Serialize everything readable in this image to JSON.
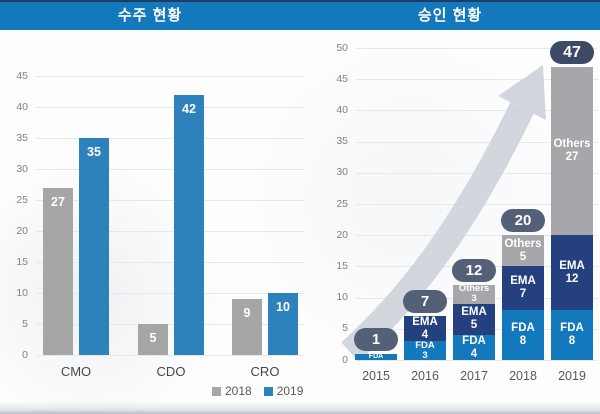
{
  "page": {
    "background": "#fdfdfe",
    "watermark_color": "#d3d8df"
  },
  "header": {
    "left_title": "수주 현황",
    "right_title": "승인 현황",
    "band_color": "#1478bd",
    "top_line_color": "#1e3c64",
    "text_color": "#ffffff"
  },
  "legend": {
    "items": [
      {
        "label": "2018",
        "color": "#a6a6a6"
      },
      {
        "label": "2019",
        "color": "#2e82bc"
      }
    ]
  },
  "chart_data": [
    {
      "type": "bar",
      "title": "수주 현황",
      "categories": [
        "CMO",
        "CDO",
        "CRO"
      ],
      "series": [
        {
          "name": "2018",
          "color": "#a6a6a6",
          "values": [
            27,
            5,
            9
          ]
        },
        {
          "name": "2019",
          "color": "#2e82bc",
          "values": [
            35,
            42,
            10
          ]
        }
      ],
      "ylim": [
        0,
        45
      ],
      "yticks": [
        0,
        5,
        10,
        15,
        20,
        25,
        30,
        35,
        40,
        45
      ],
      "grid": true,
      "value_labels": "inside-top-white",
      "legend_position": "bottom-right"
    },
    {
      "type": "stacked-bar",
      "title": "승인 현황",
      "categories": [
        "2015",
        "2016",
        "2017",
        "2018",
        "2019"
      ],
      "series": [
        {
          "name": "FDA",
          "color": "#1478bd",
          "values": [
            1,
            3,
            4,
            8,
            8
          ]
        },
        {
          "name": "EMA",
          "color": "#24407e",
          "values": [
            0,
            4,
            5,
            7,
            12
          ]
        },
        {
          "name": "Others",
          "color": "#a7a7ab",
          "values": [
            0,
            0,
            3,
            5,
            27
          ]
        }
      ],
      "totals": [
        1,
        7,
        12,
        20,
        47
      ],
      "total_pill_colors": [
        "#545f78",
        "#545f78",
        "#545f78",
        "#545f78",
        "#3d4a66"
      ],
      "ylim": [
        0,
        50
      ],
      "yticks": [
        0,
        5,
        10,
        15,
        20,
        25,
        30,
        35,
        40,
        45,
        50
      ],
      "grid": true,
      "annotations": [
        {
          "type": "arrow",
          "direction": "up-right",
          "color": "#ccd1da",
          "meaning": "growth trend"
        }
      ]
    }
  ]
}
